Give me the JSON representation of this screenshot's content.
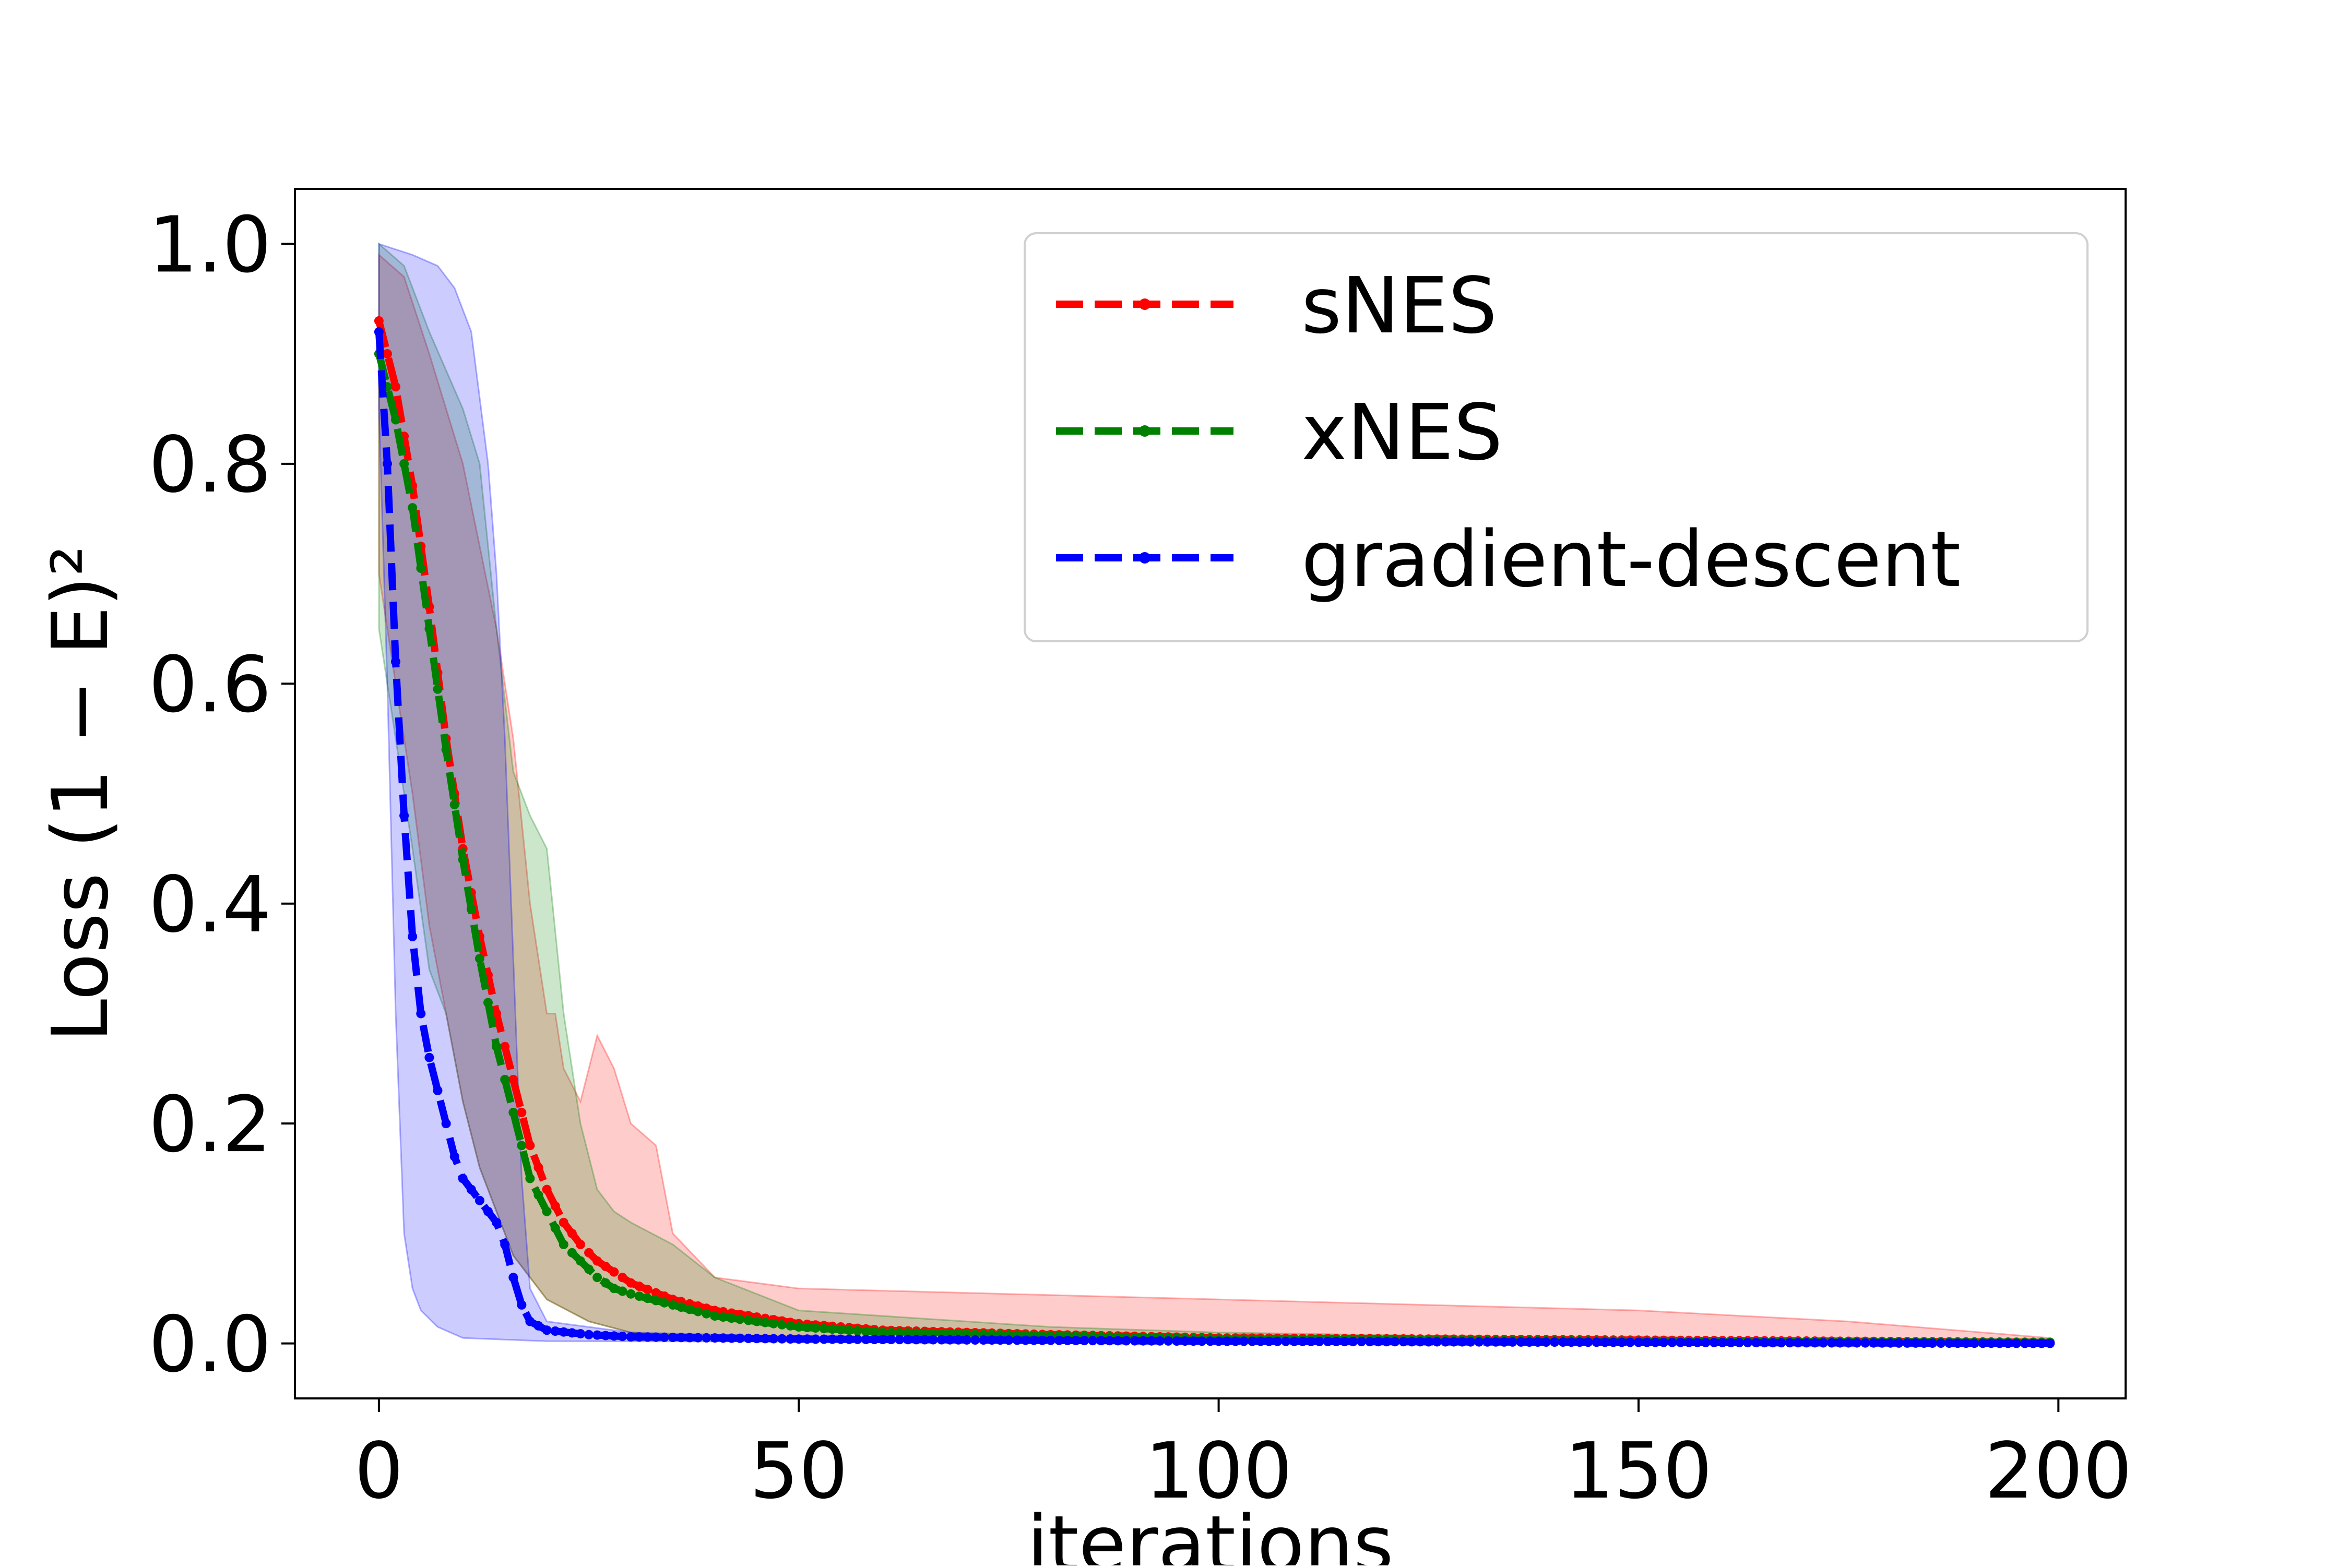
{
  "chart_data": {
    "type": "line",
    "xlabel": "iterations",
    "ylabel": "Loss (1 − E)²",
    "xlim": [
      -10,
      208
    ],
    "ylim": [
      -0.05,
      1.05
    ],
    "xticks": [
      0,
      50,
      100,
      150,
      200
    ],
    "yticks": [
      0.0,
      0.2,
      0.4,
      0.6,
      0.8,
      1.0
    ],
    "xtick_labels": [
      "0",
      "50",
      "100",
      "150",
      "200"
    ],
    "ytick_labels": [
      "0.0",
      "0.2",
      "0.4",
      "0.6",
      "0.8",
      "1.0"
    ],
    "grid": false,
    "legend_position": "top-right",
    "series": [
      {
        "name": "sNES",
        "color": "#ff0000",
        "line_style": "dashed",
        "mean": [
          [
            0,
            0.93
          ],
          [
            2,
            0.87
          ],
          [
            4,
            0.78
          ],
          [
            6,
            0.67
          ],
          [
            8,
            0.55
          ],
          [
            10,
            0.45
          ],
          [
            12,
            0.37
          ],
          [
            14,
            0.3
          ],
          [
            16,
            0.24
          ],
          [
            18,
            0.18
          ],
          [
            20,
            0.14
          ],
          [
            22,
            0.11
          ],
          [
            24,
            0.09
          ],
          [
            26,
            0.075
          ],
          [
            28,
            0.065
          ],
          [
            30,
            0.055
          ],
          [
            35,
            0.04
          ],
          [
            40,
            0.03
          ],
          [
            50,
            0.018
          ],
          [
            60,
            0.012
          ],
          [
            80,
            0.008
          ],
          [
            100,
            0.005
          ],
          [
            150,
            0.003
          ],
          [
            199,
            0.001
          ]
        ],
        "band_upper": [
          [
            0,
            0.99
          ],
          [
            3,
            0.97
          ],
          [
            6,
            0.9
          ],
          [
            10,
            0.8
          ],
          [
            14,
            0.65
          ],
          [
            16,
            0.55
          ],
          [
            18,
            0.4
          ],
          [
            20,
            0.3
          ],
          [
            21,
            0.3
          ],
          [
            22,
            0.25
          ],
          [
            24,
            0.22
          ],
          [
            26,
            0.28
          ],
          [
            28,
            0.25
          ],
          [
            30,
            0.2
          ],
          [
            33,
            0.18
          ],
          [
            35,
            0.1
          ],
          [
            40,
            0.06
          ],
          [
            50,
            0.05
          ],
          [
            100,
            0.04
          ],
          [
            150,
            0.03
          ],
          [
            175,
            0.02
          ],
          [
            199,
            0.005
          ]
        ],
        "band_lower": [
          [
            0,
            0.7
          ],
          [
            2,
            0.6
          ],
          [
            4,
            0.5
          ],
          [
            6,
            0.38
          ],
          [
            8,
            0.3
          ],
          [
            10,
            0.22
          ],
          [
            12,
            0.16
          ],
          [
            14,
            0.12
          ],
          [
            16,
            0.08
          ],
          [
            18,
            0.06
          ],
          [
            20,
            0.04
          ],
          [
            25,
            0.02
          ],
          [
            30,
            0.01
          ],
          [
            40,
            0.005
          ],
          [
            60,
            0.002
          ],
          [
            199,
            0.0
          ]
        ]
      },
      {
        "name": "xNES",
        "color": "#008000",
        "line_style": "dashed",
        "mean": [
          [
            0,
            0.9
          ],
          [
            2,
            0.84
          ],
          [
            4,
            0.76
          ],
          [
            6,
            0.65
          ],
          [
            8,
            0.54
          ],
          [
            10,
            0.44
          ],
          [
            12,
            0.35
          ],
          [
            14,
            0.27
          ],
          [
            16,
            0.21
          ],
          [
            18,
            0.15
          ],
          [
            20,
            0.12
          ],
          [
            22,
            0.09
          ],
          [
            24,
            0.075
          ],
          [
            26,
            0.06
          ],
          [
            28,
            0.05
          ],
          [
            30,
            0.045
          ],
          [
            35,
            0.035
          ],
          [
            40,
            0.025
          ],
          [
            50,
            0.015
          ],
          [
            60,
            0.01
          ],
          [
            80,
            0.007
          ],
          [
            100,
            0.004
          ],
          [
            150,
            0.002
          ],
          [
            199,
            0.001
          ]
        ],
        "band_upper": [
          [
            0,
            1.0
          ],
          [
            3,
            0.98
          ],
          [
            6,
            0.92
          ],
          [
            10,
            0.85
          ],
          [
            12,
            0.8
          ],
          [
            14,
            0.65
          ],
          [
            16,
            0.52
          ],
          [
            18,
            0.48
          ],
          [
            20,
            0.45
          ],
          [
            22,
            0.3
          ],
          [
            24,
            0.2
          ],
          [
            26,
            0.14
          ],
          [
            28,
            0.12
          ],
          [
            30,
            0.11
          ],
          [
            35,
            0.09
          ],
          [
            40,
            0.06
          ],
          [
            50,
            0.03
          ],
          [
            80,
            0.015
          ],
          [
            100,
            0.01
          ],
          [
            150,
            0.004
          ],
          [
            199,
            0.002
          ]
        ],
        "band_lower": [
          [
            0,
            0.65
          ],
          [
            2,
            0.55
          ],
          [
            4,
            0.45
          ],
          [
            6,
            0.34
          ],
          [
            8,
            0.3
          ],
          [
            10,
            0.22
          ],
          [
            12,
            0.16
          ],
          [
            14,
            0.12
          ],
          [
            16,
            0.08
          ],
          [
            18,
            0.06
          ],
          [
            20,
            0.04
          ],
          [
            25,
            0.02
          ],
          [
            30,
            0.01
          ],
          [
            40,
            0.005
          ],
          [
            60,
            0.002
          ],
          [
            199,
            0.0
          ]
        ]
      },
      {
        "name": "gradient-descent",
        "color": "#0000ff",
        "line_style": "dashed",
        "mean": [
          [
            0,
            0.92
          ],
          [
            1,
            0.8
          ],
          [
            2,
            0.62
          ],
          [
            3,
            0.48
          ],
          [
            4,
            0.37
          ],
          [
            5,
            0.3
          ],
          [
            6,
            0.26
          ],
          [
            7,
            0.23
          ],
          [
            8,
            0.2
          ],
          [
            9,
            0.17
          ],
          [
            10,
            0.15
          ],
          [
            12,
            0.13
          ],
          [
            14,
            0.11
          ],
          [
            15,
            0.09
          ],
          [
            16,
            0.06
          ],
          [
            17,
            0.035
          ],
          [
            18,
            0.02
          ],
          [
            20,
            0.012
          ],
          [
            25,
            0.008
          ],
          [
            30,
            0.006
          ],
          [
            50,
            0.004
          ],
          [
            100,
            0.002
          ],
          [
            150,
            0.001
          ],
          [
            199,
            0.0
          ]
        ],
        "band_upper": [
          [
            0,
            1.0
          ],
          [
            4,
            0.99
          ],
          [
            7,
            0.98
          ],
          [
            9,
            0.96
          ],
          [
            11,
            0.92
          ],
          [
            13,
            0.8
          ],
          [
            14,
            0.7
          ],
          [
            15,
            0.55
          ],
          [
            16,
            0.35
          ],
          [
            17,
            0.15
          ],
          [
            18,
            0.05
          ],
          [
            20,
            0.02
          ],
          [
            30,
            0.01
          ],
          [
            50,
            0.006
          ],
          [
            100,
            0.003
          ],
          [
            199,
            0.001
          ]
        ],
        "band_lower": [
          [
            0,
            0.85
          ],
          [
            1,
            0.6
          ],
          [
            2,
            0.3
          ],
          [
            3,
            0.1
          ],
          [
            4,
            0.05
          ],
          [
            5,
            0.03
          ],
          [
            7,
            0.015
          ],
          [
            10,
            0.005
          ],
          [
            20,
            0.002
          ],
          [
            199,
            0.0
          ]
        ]
      }
    ]
  }
}
